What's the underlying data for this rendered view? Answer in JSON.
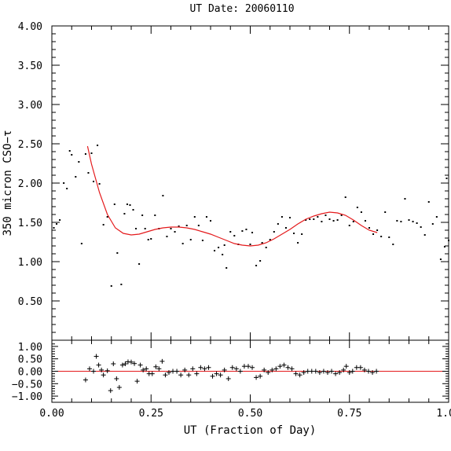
{
  "chart_data": {
    "type": "scatter",
    "title": "UT Date: 20060110",
    "xlabel": "UT (Fraction of Day)",
    "ylabel": "350 micron CSO−τ",
    "xlim": [
      0,
      1
    ],
    "x_ticks": [
      "0.00",
      "0.25",
      "0.50",
      "0.75",
      "1.00"
    ],
    "x_tick_values": [
      0,
      0.25,
      0.5,
      0.75,
      1.0
    ],
    "top_panel": {
      "ylim": [
        0,
        4
      ],
      "y_ticks": [
        "0.50",
        "1.00",
        "1.50",
        "2.00",
        "2.50",
        "3.00",
        "3.50",
        "4.00"
      ],
      "y_tick_values": [
        0.5,
        1.0,
        1.5,
        2.0,
        2.5,
        3.0,
        3.5,
        4.0
      ],
      "points": [
        [
          0.005,
          1.43
        ],
        [
          0.012,
          1.48
        ],
        [
          0.02,
          1.53
        ],
        [
          0.03,
          2.0
        ],
        [
          0.038,
          1.93
        ],
        [
          0.045,
          2.41
        ],
        [
          0.05,
          2.36
        ],
        [
          0.06,
          2.08
        ],
        [
          0.068,
          2.27
        ],
        [
          0.075,
          1.23
        ],
        [
          0.085,
          2.37
        ],
        [
          0.092,
          2.13
        ],
        [
          0.1,
          2.38
        ],
        [
          0.105,
          2.02
        ],
        [
          0.115,
          2.48
        ],
        [
          0.12,
          1.99
        ],
        [
          0.13,
          1.47
        ],
        [
          0.14,
          1.57
        ],
        [
          0.15,
          0.69
        ],
        [
          0.158,
          1.73
        ],
        [
          0.165,
          1.11
        ],
        [
          0.175,
          0.71
        ],
        [
          0.183,
          1.61
        ],
        [
          0.19,
          1.73
        ],
        [
          0.197,
          1.72
        ],
        [
          0.205,
          1.66
        ],
        [
          0.212,
          1.42
        ],
        [
          0.22,
          0.97
        ],
        [
          0.228,
          1.59
        ],
        [
          0.235,
          1.42
        ],
        [
          0.243,
          1.28
        ],
        [
          0.25,
          1.29
        ],
        [
          0.26,
          1.59
        ],
        [
          0.27,
          1.42
        ],
        [
          0.28,
          1.84
        ],
        [
          0.29,
          1.32
        ],
        [
          0.3,
          1.42
        ],
        [
          0.31,
          1.38
        ],
        [
          0.32,
          1.45
        ],
        [
          0.33,
          1.23
        ],
        [
          0.34,
          1.46
        ],
        [
          0.35,
          1.28
        ],
        [
          0.36,
          1.57
        ],
        [
          0.37,
          1.46
        ],
        [
          0.38,
          1.27
        ],
        [
          0.39,
          1.57
        ],
        [
          0.4,
          1.52
        ],
        [
          0.41,
          1.14
        ],
        [
          0.42,
          1.18
        ],
        [
          0.43,
          1.09
        ],
        [
          0.435,
          1.21
        ],
        [
          0.44,
          0.92
        ],
        [
          0.45,
          1.38
        ],
        [
          0.46,
          1.33
        ],
        [
          0.47,
          1.22
        ],
        [
          0.48,
          1.39
        ],
        [
          0.49,
          1.41
        ],
        [
          0.5,
          1.22
        ],
        [
          0.505,
          1.37
        ],
        [
          0.515,
          0.95
        ],
        [
          0.525,
          1.01
        ],
        [
          0.53,
          1.24
        ],
        [
          0.54,
          1.18
        ],
        [
          0.55,
          1.28
        ],
        [
          0.56,
          1.38
        ],
        [
          0.57,
          1.48
        ],
        [
          0.58,
          1.57
        ],
        [
          0.59,
          1.43
        ],
        [
          0.6,
          1.56
        ],
        [
          0.61,
          1.36
        ],
        [
          0.62,
          1.24
        ],
        [
          0.63,
          1.35
        ],
        [
          0.64,
          1.53
        ],
        [
          0.65,
          1.54
        ],
        [
          0.66,
          1.54
        ],
        [
          0.67,
          1.57
        ],
        [
          0.68,
          1.51
        ],
        [
          0.69,
          1.59
        ],
        [
          0.7,
          1.54
        ],
        [
          0.71,
          1.52
        ],
        [
          0.72,
          1.53
        ],
        [
          0.73,
          1.59
        ],
        [
          0.74,
          1.82
        ],
        [
          0.75,
          1.46
        ],
        [
          0.76,
          1.51
        ],
        [
          0.77,
          1.69
        ],
        [
          0.78,
          1.63
        ],
        [
          0.79,
          1.52
        ],
        [
          0.8,
          1.43
        ],
        [
          0.81,
          1.35
        ],
        [
          0.82,
          1.4
        ],
        [
          0.83,
          1.32
        ],
        [
          0.84,
          1.63
        ],
        [
          0.85,
          1.31
        ],
        [
          0.86,
          1.22
        ],
        [
          0.87,
          1.52
        ],
        [
          0.88,
          1.51
        ],
        [
          0.89,
          1.8
        ],
        [
          0.9,
          1.53
        ],
        [
          0.91,
          1.51
        ],
        [
          0.92,
          1.49
        ],
        [
          0.93,
          1.44
        ],
        [
          0.94,
          1.34
        ],
        [
          0.95,
          1.76
        ],
        [
          0.96,
          1.48
        ],
        [
          0.97,
          1.57
        ],
        [
          0.98,
          1.03
        ],
        [
          0.99,
          1.19
        ],
        [
          0.995,
          2.06
        ],
        [
          1.0,
          1.27
        ]
      ],
      "fit_curve": [
        [
          0.09,
          2.47
        ],
        [
          0.1,
          2.24
        ],
        [
          0.12,
          1.88
        ],
        [
          0.14,
          1.6
        ],
        [
          0.16,
          1.43
        ],
        [
          0.18,
          1.36
        ],
        [
          0.2,
          1.34
        ],
        [
          0.22,
          1.35
        ],
        [
          0.24,
          1.38
        ],
        [
          0.26,
          1.41
        ],
        [
          0.28,
          1.43
        ],
        [
          0.3,
          1.44
        ],
        [
          0.32,
          1.44
        ],
        [
          0.34,
          1.43
        ],
        [
          0.36,
          1.41
        ],
        [
          0.38,
          1.38
        ],
        [
          0.4,
          1.35
        ],
        [
          0.42,
          1.31
        ],
        [
          0.44,
          1.27
        ],
        [
          0.46,
          1.23
        ],
        [
          0.48,
          1.21
        ],
        [
          0.5,
          1.2
        ],
        [
          0.52,
          1.21
        ],
        [
          0.54,
          1.24
        ],
        [
          0.56,
          1.29
        ],
        [
          0.58,
          1.35
        ],
        [
          0.6,
          1.41
        ],
        [
          0.62,
          1.48
        ],
        [
          0.64,
          1.54
        ],
        [
          0.66,
          1.58
        ],
        [
          0.68,
          1.61
        ],
        [
          0.7,
          1.63
        ],
        [
          0.72,
          1.62
        ],
        [
          0.74,
          1.59
        ],
        [
          0.76,
          1.53
        ],
        [
          0.78,
          1.46
        ],
        [
          0.8,
          1.4
        ],
        [
          0.82,
          1.37
        ]
      ],
      "point_color": "#000000",
      "fit_color": "#e41a1c"
    },
    "bottom_panel": {
      "ylim": [
        -1.25,
        1.25
      ],
      "y_ticks": [
        "1.00",
        "0.50",
        "0.00",
        "−0.50",
        "−1.00"
      ],
      "y_tick_values": [
        1.0,
        0.5,
        0.0,
        -0.5,
        -1.0
      ],
      "zero_line_color": "#e41a1c",
      "residuals": [
        [
          0.085,
          -0.35
        ],
        [
          0.095,
          0.1
        ],
        [
          0.105,
          0.0
        ],
        [
          0.112,
          0.6
        ],
        [
          0.118,
          0.25
        ],
        [
          0.125,
          0.05
        ],
        [
          0.13,
          -0.15
        ],
        [
          0.14,
          0.02
        ],
        [
          0.148,
          -0.78
        ],
        [
          0.155,
          0.3
        ],
        [
          0.163,
          -0.3
        ],
        [
          0.17,
          -0.65
        ],
        [
          0.178,
          0.25
        ],
        [
          0.185,
          0.3
        ],
        [
          0.192,
          0.38
        ],
        [
          0.2,
          0.37
        ],
        [
          0.208,
          0.31
        ],
        [
          0.215,
          -0.4
        ],
        [
          0.223,
          0.25
        ],
        [
          0.23,
          0.05
        ],
        [
          0.238,
          0.1
        ],
        [
          0.245,
          -0.1
        ],
        [
          0.253,
          -0.1
        ],
        [
          0.262,
          0.18
        ],
        [
          0.27,
          0.1
        ],
        [
          0.278,
          0.4
        ],
        [
          0.286,
          -0.15
        ],
        [
          0.295,
          -0.05
        ],
        [
          0.305,
          0.0
        ],
        [
          0.315,
          0.0
        ],
        [
          0.325,
          -0.15
        ],
        [
          0.335,
          0.05
        ],
        [
          0.345,
          -0.15
        ],
        [
          0.355,
          0.1
        ],
        [
          0.365,
          -0.1
        ],
        [
          0.375,
          0.15
        ],
        [
          0.385,
          0.1
        ],
        [
          0.395,
          0.15
        ],
        [
          0.405,
          -0.2
        ],
        [
          0.415,
          -0.1
        ],
        [
          0.425,
          -0.15
        ],
        [
          0.435,
          0.05
        ],
        [
          0.445,
          -0.3
        ],
        [
          0.455,
          0.15
        ],
        [
          0.465,
          0.1
        ],
        [
          0.475,
          0.0
        ],
        [
          0.485,
          0.2
        ],
        [
          0.495,
          0.2
        ],
        [
          0.505,
          0.15
        ],
        [
          0.515,
          -0.25
        ],
        [
          0.525,
          -0.2
        ],
        [
          0.535,
          0.05
        ],
        [
          0.545,
          -0.05
        ],
        [
          0.555,
          0.05
        ],
        [
          0.565,
          0.1
        ],
        [
          0.575,
          0.2
        ],
        [
          0.585,
          0.25
        ],
        [
          0.595,
          0.15
        ],
        [
          0.605,
          0.1
        ],
        [
          0.615,
          -0.1
        ],
        [
          0.625,
          -0.15
        ],
        [
          0.635,
          -0.05
        ],
        [
          0.645,
          0.0
        ],
        [
          0.655,
          0.0
        ],
        [
          0.665,
          0.0
        ],
        [
          0.675,
          -0.05
        ],
        [
          0.685,
          0.0
        ],
        [
          0.695,
          -0.05
        ],
        [
          0.705,
          0.0
        ],
        [
          0.715,
          -0.1
        ],
        [
          0.725,
          -0.05
        ],
        [
          0.735,
          0.05
        ],
        [
          0.742,
          0.2
        ],
        [
          0.75,
          -0.05
        ],
        [
          0.758,
          0.0
        ],
        [
          0.768,
          0.15
        ],
        [
          0.778,
          0.15
        ],
        [
          0.788,
          0.05
        ],
        [
          0.798,
          0.0
        ],
        [
          0.808,
          -0.05
        ],
        [
          0.818,
          0.0
        ]
      ]
    }
  }
}
